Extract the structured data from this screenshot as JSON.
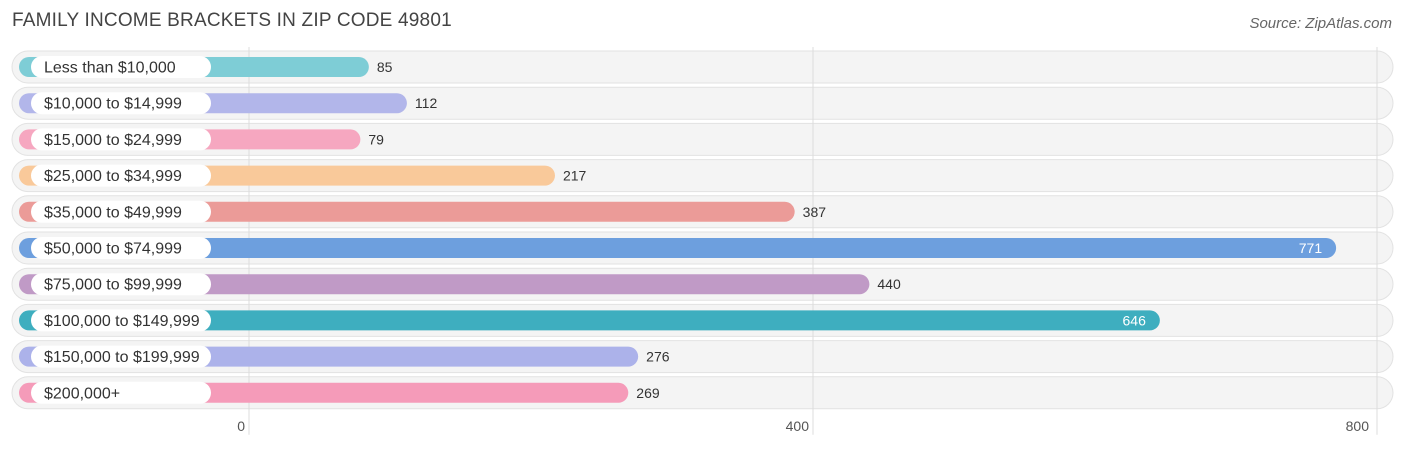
{
  "header": {
    "title": "FAMILY INCOME BRACKETS IN ZIP CODE 49801",
    "source": "Source: ZipAtlas.com"
  },
  "chart_data": {
    "type": "bar",
    "orientation": "horizontal",
    "title": "FAMILY INCOME BRACKETS IN ZIP CODE 49801",
    "xlabel": "",
    "ylabel": "",
    "xlim": [
      0,
      800
    ],
    "ticks": [
      0,
      400,
      800
    ],
    "grid": true,
    "categories": [
      "Less than $10,000",
      "$10,000 to $14,999",
      "$15,000 to $24,999",
      "$25,000 to $34,999",
      "$35,000 to $49,999",
      "$50,000 to $74,999",
      "$75,000 to $99,999",
      "$100,000 to $149,999",
      "$150,000 to $199,999",
      "$200,000+"
    ],
    "values": [
      85,
      112,
      79,
      217,
      387,
      771,
      440,
      646,
      276,
      269
    ],
    "colors": [
      "#7ecdd6",
      "#b2b6ea",
      "#f6a7c0",
      "#f9c99a",
      "#eb9b98",
      "#6d9fde",
      "#c09ac6",
      "#3eaebf",
      "#acb2ea",
      "#f59bb9"
    ]
  }
}
